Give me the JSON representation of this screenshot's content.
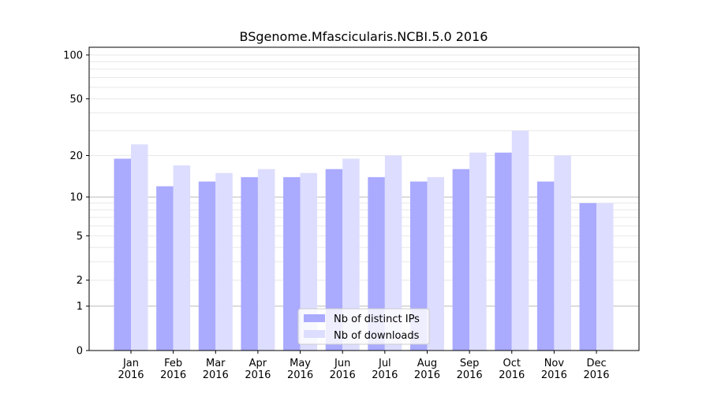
{
  "chart_data": {
    "type": "bar",
    "title": "BSgenome.Mfascicularis.NCBI.5.0 2016",
    "xlabel": "",
    "ylabel": "",
    "yscale": "symlog (log10(1+y))",
    "ylim": [
      0,
      113
    ],
    "yticks": [
      0,
      1,
      2,
      5,
      10,
      20,
      50,
      100
    ],
    "categories": [
      "Jan\n2016",
      "Feb\n2016",
      "Mar\n2016",
      "Apr\n2016",
      "May\n2016",
      "Jun\n2016",
      "Jul\n2016",
      "Aug\n2016",
      "Sep\n2016",
      "Oct\n2016",
      "Nov\n2016",
      "Dec\n2016"
    ],
    "series": [
      {
        "name": "Nb of distinct IPs",
        "color": "#aaaaff",
        "values": [
          19,
          12,
          13,
          14,
          14,
          16,
          14,
          13,
          16,
          21,
          13,
          9
        ]
      },
      {
        "name": "Nb of downloads",
        "color": "#ddddff",
        "values": [
          24,
          17,
          15,
          16,
          15,
          19,
          20,
          14,
          21,
          30,
          20,
          9
        ]
      }
    ],
    "legend": "lower-center",
    "grid": true
  }
}
